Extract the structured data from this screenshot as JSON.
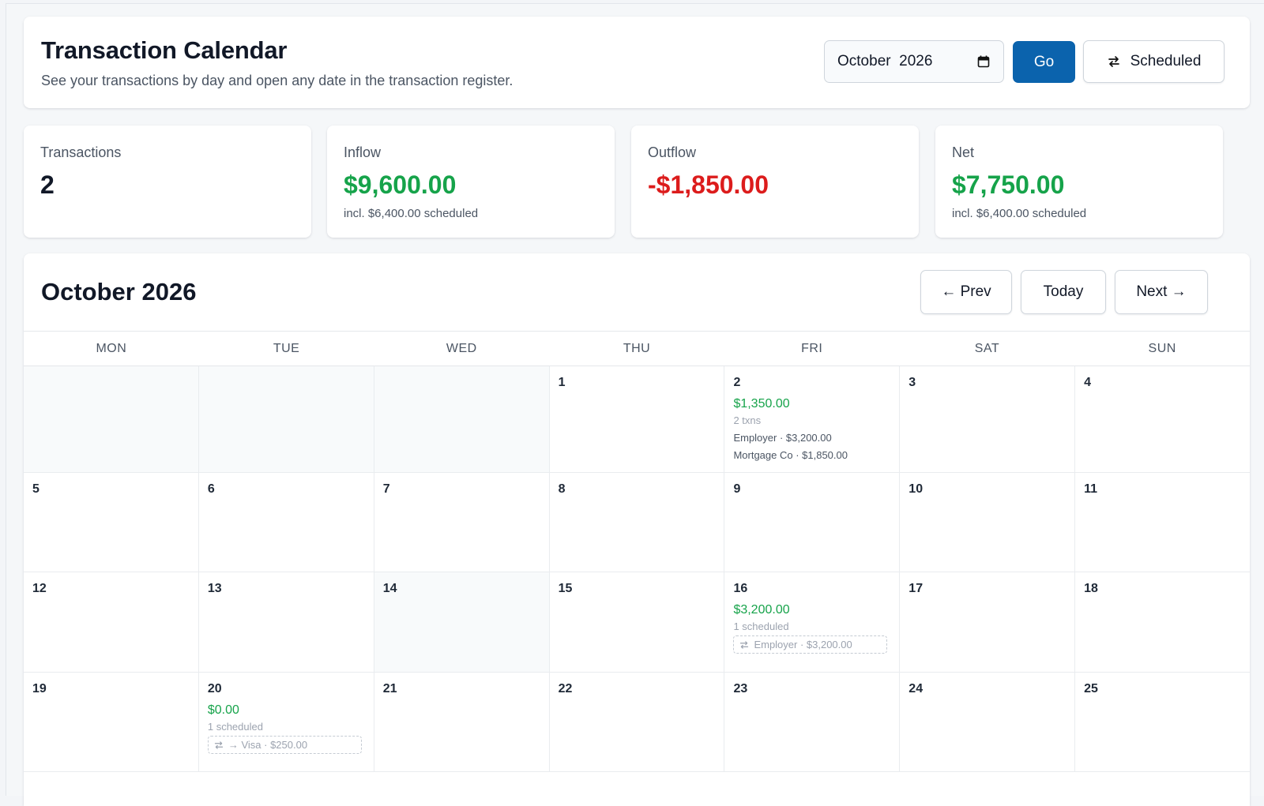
{
  "header": {
    "title": "Transaction Calendar",
    "subtitle": "See your transactions by day and open any date in the transaction register.",
    "month_input": "October  2026",
    "go_label": "Go",
    "scheduled_label": "Scheduled"
  },
  "stats": [
    {
      "label": "Transactions",
      "value": "2",
      "note": "",
      "color": "#111827"
    },
    {
      "label": "Inflow",
      "value": "$9,600.00",
      "note": "incl. $6,400.00 scheduled",
      "color": "#16a34a"
    },
    {
      "label": "Outflow",
      "value": "-$1,850.00",
      "note": "",
      "color": "#dc1c1c"
    },
    {
      "label": "Net",
      "value": "$7,750.00",
      "note": "incl. $6,400.00 scheduled",
      "color": "#16a34a"
    }
  ],
  "calendar": {
    "title": "October 2026",
    "prev_label": "← Prev",
    "today_label": "Today",
    "next_label": "Next →",
    "weekdays": [
      "MON",
      "TUE",
      "WED",
      "THU",
      "FRI",
      "SAT",
      "SUN"
    ],
    "weeks": [
      [
        {
          "day": "",
          "muted": true
        },
        {
          "day": "",
          "muted": true
        },
        {
          "day": "",
          "muted": true
        },
        {
          "day": "1"
        },
        {
          "day": "2",
          "amount": "$1,350.00",
          "sub": "2 txns",
          "items": [
            "Employer · $3,200.00",
            "Mortgage Co · $1,850.00"
          ]
        },
        {
          "day": "3"
        },
        {
          "day": "4"
        }
      ],
      [
        {
          "day": "5"
        },
        {
          "day": "6"
        },
        {
          "day": "7"
        },
        {
          "day": "8"
        },
        {
          "day": "9"
        },
        {
          "day": "10"
        },
        {
          "day": "11"
        }
      ],
      [
        {
          "day": "12"
        },
        {
          "day": "13"
        },
        {
          "day": "14",
          "muted": true
        },
        {
          "day": "15"
        },
        {
          "day": "16",
          "amount": "$3,200.00",
          "sub": "1 scheduled",
          "scheduled": "Employer · $3,200.00"
        },
        {
          "day": "17"
        },
        {
          "day": "18"
        }
      ],
      [
        {
          "day": "19"
        },
        {
          "day": "20",
          "amount": "$0.00",
          "sub": "1 scheduled",
          "scheduled": "→ Visa · $250.00"
        },
        {
          "day": "21"
        },
        {
          "day": "22"
        },
        {
          "day": "23"
        },
        {
          "day": "24"
        },
        {
          "day": "25"
        }
      ]
    ]
  }
}
